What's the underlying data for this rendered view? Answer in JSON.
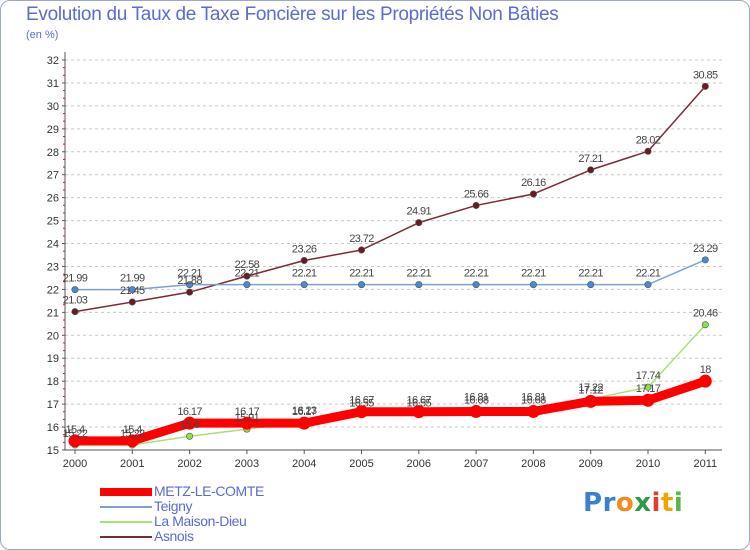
{
  "title": "Evolution du Taux de Taxe Foncière sur les Propriétés Non Bâties",
  "unit_label": "(en %)",
  "logo": {
    "text": "Proxiti",
    "letters": [
      "P",
      "r",
      "o",
      "x",
      "i",
      "t",
      "i"
    ],
    "colors": [
      "#3b7fd4",
      "#3b7fd4",
      "#f08c1e",
      "#2c9c46",
      "#e43d30",
      "#f0a500",
      "#5ab54a"
    ]
  },
  "chart_data": {
    "type": "line",
    "title": "Evolution du Taux de Taxe Foncière sur les Propriétés Non Bâties",
    "xlabel": "",
    "ylabel": "(en %)",
    "x": [
      "2000",
      "2001",
      "2002",
      "2003",
      "2004",
      "2005",
      "2006",
      "2007",
      "2008",
      "2009",
      "2010",
      "2011"
    ],
    "ylim": [
      15,
      32
    ],
    "yticks": [
      15,
      16,
      17,
      18,
      19,
      20,
      21,
      22,
      23,
      24,
      25,
      26,
      27,
      28,
      29,
      30,
      31,
      32
    ],
    "grid": "horizontal-dashed",
    "legend_position": "bottom-left",
    "series": [
      {
        "name": "METZ-LE-COMTE",
        "color": "#ff0000",
        "marker_fill": "#ff0000",
        "weight": "thick",
        "values": [
          15.4,
          15.4,
          16.17,
          16.17,
          16.17,
          16.67,
          16.67,
          16.68,
          16.68,
          17.12,
          17.17,
          18
        ],
        "labels": [
          "15.4",
          "15.4",
          "16.17",
          "16.17",
          "16.17",
          "16.67",
          "16.67",
          "16.68",
          "16.68",
          "17.12",
          "17.17",
          "18"
        ]
      },
      {
        "name": "Teigny",
        "color": "#7ba3cf",
        "marker_fill": "#4a8bd0",
        "weight": "thin",
        "values": [
          21.99,
          21.99,
          22.21,
          22.21,
          22.21,
          22.21,
          22.21,
          22.21,
          22.21,
          22.21,
          22.21,
          23.29
        ],
        "labels": [
          "21.99",
          "21.99",
          "22.21",
          "22.21",
          "22.21",
          "22.21",
          "22.21",
          "22.21",
          "22.21",
          "22.21",
          "22.21",
          "23.29"
        ]
      },
      {
        "name": "La Maison-Dieu",
        "color": "#a8e07a",
        "marker_fill": "#8ee04a",
        "weight": "thin",
        "values": [
          15.22,
          15.22,
          15.6,
          15.91,
          16.23,
          16.55,
          16.55,
          16.81,
          16.81,
          17.22,
          17.74,
          20.46
        ],
        "labels": [
          "15.22",
          "15.22",
          "15.6",
          "15.91",
          "16.23",
          "16.55",
          "16.55",
          "16.81",
          "16.81",
          "17.22",
          "17.74",
          "20.46"
        ]
      },
      {
        "name": "Asnois",
        "color": "#7b2a33",
        "marker_fill": "#6a1a22",
        "weight": "thin",
        "values": [
          21.03,
          21.45,
          21.88,
          22.58,
          23.26,
          23.72,
          24.91,
          25.66,
          26.16,
          27.21,
          28.02,
          30.85
        ],
        "labels": [
          "21.03",
          "21.45",
          "21.88",
          "22.58",
          "23.26",
          "23.72",
          "24.91",
          "25.66",
          "26.16",
          "27.21",
          "28.02",
          "30.85"
        ]
      }
    ]
  }
}
